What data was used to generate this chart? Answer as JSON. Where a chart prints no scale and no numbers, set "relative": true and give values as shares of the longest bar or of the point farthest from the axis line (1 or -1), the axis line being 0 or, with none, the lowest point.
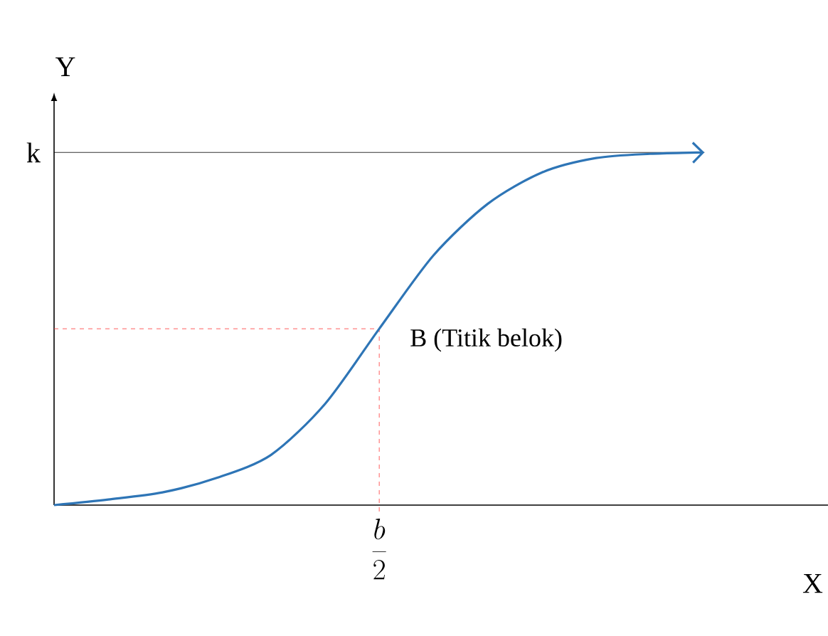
{
  "chart_data": {
    "type": "line",
    "relative": true,
    "xlabel": "X",
    "ylabel": "Y",
    "categories": [
      null,
      null,
      null,
      null,
      null,
      null,
      null,
      null,
      null,
      null,
      null,
      null,
      null
    ],
    "series": [
      {
        "color": "#2e75b6",
        "values": [
          0,
          0.016,
          0.036,
          0.077,
          0.142,
          0.287,
          0.5,
          0.708,
          0.854,
          0.943,
          0.984,
          0.996,
          1.0
        ]
      }
    ],
    "ref_lines": [
      {
        "axis": "y",
        "value": 1,
        "label": "k",
        "color": "#000000"
      }
    ],
    "annotations": [
      "B (Titik belok)",
      "\\frac{b}{2}"
    ],
    "line_style": "solid"
  }
}
